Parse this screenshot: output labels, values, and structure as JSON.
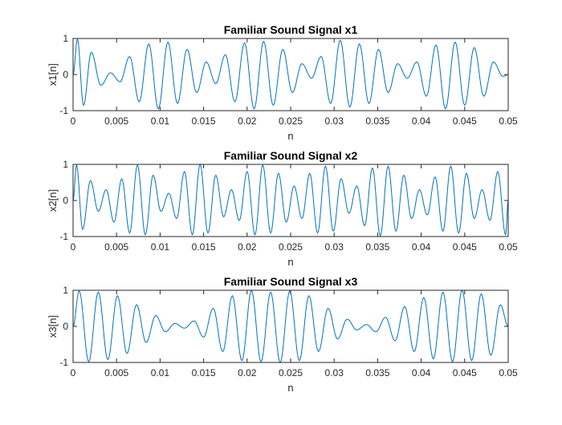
{
  "chart_data": [
    {
      "type": "line",
      "title": "Familiar Sound Signal x1",
      "xlabel": "n",
      "ylabel": "x1[n]",
      "xlim": [
        0,
        0.05
      ],
      "ylim": [
        -1,
        1
      ],
      "xticks": [
        "0",
        "0.005",
        "0.01",
        "0.015",
        "0.02",
        "0.025",
        "0.03",
        "0.035",
        "0.04",
        "0.045",
        "0.05"
      ],
      "yticks": [
        "-1",
        "0",
        "1"
      ],
      "grid": false,
      "series": [
        {
          "color": "#0072BD",
          "x": [
            0,
            0.0005,
            0.0012,
            0.0021,
            0.0032,
            0.0043,
            0.0054,
            0.0065,
            0.0076,
            0.0087,
            0.0098,
            0.0109,
            0.012,
            0.0131,
            0.0142,
            0.0153,
            0.0164,
            0.0175,
            0.0186,
            0.0197,
            0.0208,
            0.0219,
            0.023,
            0.0241,
            0.0252,
            0.0263,
            0.0274,
            0.0285,
            0.0296,
            0.0307,
            0.0318,
            0.0329,
            0.034,
            0.0351,
            0.0362,
            0.0373,
            0.0384,
            0.0395,
            0.0406,
            0.0417,
            0.0428,
            0.0439,
            0.045,
            0.0461,
            0.0472,
            0.0483,
            0.0494,
            0.05
          ],
          "y": [
            0,
            0.98,
            -0.85,
            0.62,
            -0.3,
            0.05,
            -0.2,
            0.5,
            -0.75,
            0.85,
            -0.95,
            0.9,
            -0.8,
            0.7,
            -0.5,
            0.35,
            -0.25,
            0.55,
            -0.75,
            0.88,
            -0.95,
            0.92,
            -0.85,
            0.7,
            -0.5,
            0.3,
            -0.1,
            0.5,
            -0.8,
            0.95,
            -0.9,
            0.85,
            -0.8,
            0.7,
            -0.5,
            0.3,
            -0.1,
            0.35,
            -0.6,
            0.82,
            -0.95,
            0.9,
            -0.85,
            0.75,
            -0.6,
            0.35,
            -0.05,
            0
          ]
        }
      ]
    },
    {
      "type": "line",
      "title": "Familiar Sound Signal x2",
      "xlabel": "n",
      "ylabel": "x2[n]",
      "xlim": [
        0,
        0.05
      ],
      "ylim": [
        -1,
        1
      ],
      "xticks": [
        "0",
        "0.005",
        "0.01",
        "0.015",
        "0.02",
        "0.025",
        "0.03",
        "0.035",
        "0.04",
        "0.045",
        "0.05"
      ],
      "yticks": [
        "-1",
        "0",
        "1"
      ],
      "grid": false,
      "series": [
        {
          "color": "#0072BD",
          "x": [
            0,
            0.0004,
            0.0011,
            0.002,
            0.0029,
            0.0038,
            0.0047,
            0.0056,
            0.0065,
            0.0074,
            0.0083,
            0.0092,
            0.0101,
            0.011,
            0.0119,
            0.0128,
            0.0137,
            0.0146,
            0.0155,
            0.0164,
            0.0173,
            0.0182,
            0.0191,
            0.02,
            0.0209,
            0.0218,
            0.0227,
            0.0236,
            0.0245,
            0.0254,
            0.0263,
            0.0272,
            0.0281,
            0.029,
            0.0299,
            0.0308,
            0.0317,
            0.0326,
            0.0335,
            0.0344,
            0.0353,
            0.0362,
            0.0371,
            0.038,
            0.0389,
            0.0398,
            0.0407,
            0.0416,
            0.0425,
            0.0434,
            0.0443,
            0.0452,
            0.0461,
            0.047,
            0.0479,
            0.0488,
            0.0497,
            0.05
          ],
          "y": [
            0,
            0.98,
            -0.8,
            0.55,
            -0.3,
            0.3,
            -0.6,
            0.6,
            -0.9,
            0.98,
            -0.95,
            0.7,
            -0.3,
            0.2,
            -0.5,
            0.8,
            -0.95,
            1,
            -0.9,
            0.7,
            -0.45,
            0.3,
            -0.55,
            0.8,
            -0.95,
            0.98,
            -0.9,
            0.75,
            -0.6,
            0.4,
            -0.5,
            0.75,
            -0.9,
            0.95,
            -0.85,
            0.6,
            -0.35,
            0.4,
            -0.7,
            0.9,
            -0.98,
            0.95,
            -0.85,
            0.7,
            -0.5,
            0.3,
            -0.4,
            0.65,
            -0.85,
            0.95,
            -0.9,
            0.75,
            -0.5,
            0.3,
            -0.55,
            0.8,
            -0.95,
            0
          ]
        }
      ]
    },
    {
      "type": "line",
      "title": "Familiar Sound Signal x3",
      "xlabel": "n",
      "ylabel": "x3[n]",
      "xlim": [
        0,
        0.05
      ],
      "ylim": [
        -1,
        1
      ],
      "xticks": [
        "0",
        "0.005",
        "0.01",
        "0.015",
        "0.02",
        "0.025",
        "0.03",
        "0.035",
        "0.04",
        "0.045",
        "0.05"
      ],
      "yticks": [
        "-1",
        "0",
        "1"
      ],
      "grid": false,
      "series": [
        {
          "color": "#0072BD",
          "x": [
            0,
            0.0007,
            0.0018,
            0.0029,
            0.004,
            0.0051,
            0.0062,
            0.0073,
            0.0084,
            0.0095,
            0.0106,
            0.0117,
            0.0128,
            0.0139,
            0.015,
            0.0161,
            0.0172,
            0.0183,
            0.0194,
            0.0205,
            0.0216,
            0.0227,
            0.0238,
            0.0249,
            0.026,
            0.0271,
            0.0282,
            0.0293,
            0.0304,
            0.0315,
            0.0326,
            0.0337,
            0.0348,
            0.0359,
            0.037,
            0.0381,
            0.0392,
            0.0403,
            0.0414,
            0.0425,
            0.0436,
            0.0447,
            0.0458,
            0.0469,
            0.048,
            0.0491,
            0.05
          ],
          "y": [
            0,
            0.98,
            -0.98,
            0.95,
            -0.92,
            0.85,
            -0.75,
            0.6,
            -0.45,
            0.3,
            -0.15,
            0.08,
            -0.05,
            0.15,
            -0.3,
            0.5,
            -0.7,
            0.85,
            -0.95,
            1,
            -0.98,
            0.95,
            -1,
            0.98,
            -0.95,
            0.85,
            -0.7,
            0.5,
            -0.35,
            0.2,
            -0.1,
            0.05,
            -0.15,
            0.25,
            -0.4,
            0.55,
            -0.7,
            0.8,
            -0.9,
            0.95,
            -0.98,
            1,
            -0.95,
            0.9,
            -0.8,
            0.6,
            0
          ]
        }
      ]
    }
  ]
}
